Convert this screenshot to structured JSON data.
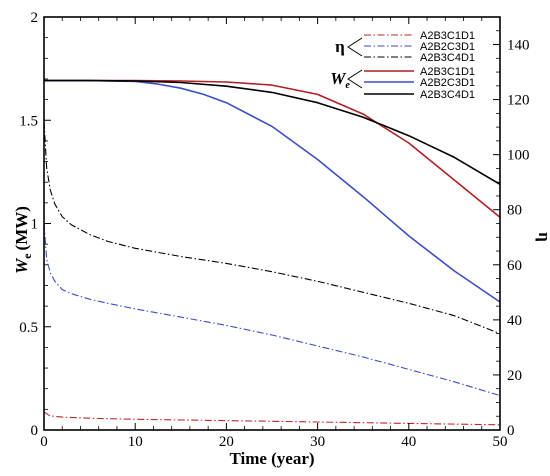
{
  "chart_data": {
    "type": "line",
    "xlabel": "Time (year)",
    "ylabel_left": "W",
    "ylabel_left_sub": "e",
    "ylabel_left_unit": "(MW)",
    "ylabel_right": "η",
    "xlim": [
      0,
      50
    ],
    "ylim_left": [
      0,
      2
    ],
    "ylim_right": [
      0,
      150
    ],
    "x_ticks": [
      "0",
      "10",
      "20",
      "30",
      "40",
      "50"
    ],
    "y_left_ticks": [
      "0",
      "0.5",
      "1",
      "1.5",
      "2"
    ],
    "y_right_ticks": [
      "0",
      "20",
      "40",
      "60",
      "80",
      "100",
      "120",
      "140"
    ],
    "grid": false,
    "legend_position": "top-right",
    "legend_group_eta": "η",
    "legend_group_we": "W",
    "legend_group_we_sub": "e",
    "series": [
      {
        "name": "A2B3C1D1",
        "group": "eta",
        "axis": "right",
        "color": "#c0272d",
        "dash": "dashdot",
        "x": [
          0,
          0.5,
          1,
          2,
          5,
          10,
          20,
          30,
          40,
          50
        ],
        "y": [
          6.6,
          5.4,
          5.0,
          4.7,
          4.3,
          3.9,
          3.4,
          2.9,
          2.4,
          1.9
        ]
      },
      {
        "name": "A2B2C3D1",
        "group": "eta",
        "axis": "right",
        "color": "#3a4fc6",
        "dash": "dashdot",
        "x": [
          0,
          0.3,
          0.7,
          1.2,
          2,
          3,
          5,
          7,
          10,
          15,
          20,
          25,
          30,
          35,
          40,
          45,
          50
        ],
        "y": [
          75,
          62,
          57,
          54,
          51,
          49.5,
          47.5,
          46,
          44,
          41,
          38,
          34.5,
          30.5,
          26.5,
          22,
          17.5,
          12.5
        ]
      },
      {
        "name": "A2B3C4D1",
        "group": "eta",
        "axis": "right",
        "color": "#000000",
        "dash": "dashdot",
        "x": [
          0,
          0.3,
          0.7,
          1.2,
          2,
          3,
          5,
          7,
          10,
          15,
          20,
          25,
          30,
          35,
          40,
          45,
          50
        ],
        "y": [
          112,
          95,
          87,
          82,
          77.5,
          74.5,
          71,
          68.5,
          66,
          63,
          60.5,
          57.5,
          54,
          50,
          46,
          41.5,
          35
        ]
      },
      {
        "name": "A2B3C1D1",
        "group": "We",
        "axis": "left",
        "color": "#b11f24",
        "dash": "solid",
        "x": [
          0,
          5,
          10,
          15,
          20,
          25,
          30,
          35,
          40,
          45,
          50
        ],
        "y": [
          1.692,
          1.692,
          1.692,
          1.69,
          1.685,
          1.67,
          1.625,
          1.53,
          1.39,
          1.21,
          1.03
        ]
      },
      {
        "name": "A2B2C3D1",
        "group": "We",
        "axis": "left",
        "color": "#3a4fc6",
        "dash": "solid",
        "x": [
          0,
          5,
          10,
          12.5,
          15,
          17.5,
          20,
          25,
          30,
          35,
          40,
          45,
          50
        ],
        "y": [
          1.692,
          1.692,
          1.688,
          1.675,
          1.655,
          1.625,
          1.585,
          1.47,
          1.31,
          1.13,
          0.94,
          0.77,
          0.62
        ]
      },
      {
        "name": "A2B3C4D1",
        "group": "We",
        "axis": "left",
        "color": "#000000",
        "dash": "solid",
        "x": [
          0,
          5,
          10,
          15,
          20,
          25,
          30,
          35,
          40,
          45,
          50
        ],
        "y": [
          1.692,
          1.692,
          1.69,
          1.683,
          1.665,
          1.635,
          1.585,
          1.515,
          1.425,
          1.32,
          1.19
        ]
      }
    ]
  }
}
